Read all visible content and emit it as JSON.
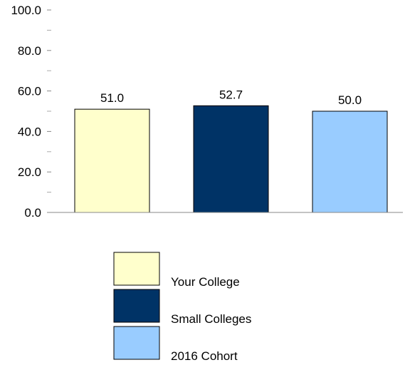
{
  "chart_data": {
    "type": "bar",
    "categories": [
      "Your College",
      "Small Colleges",
      "2016 Cohort"
    ],
    "values": [
      51.0,
      52.7,
      50.0
    ],
    "data_labels": [
      "51.0",
      "52.7",
      "50.0"
    ],
    "colors": [
      "#ffffcc",
      "#003366",
      "#99ccff"
    ],
    "ylim": [
      0,
      100
    ],
    "yticks": [
      0,
      20,
      40,
      60,
      80,
      100
    ],
    "ytick_labels": [
      "0.0",
      "20.0",
      "40.0",
      "60.0",
      "80.0",
      "100.0"
    ],
    "minor_ticks": [
      10,
      30,
      50,
      70,
      90
    ],
    "grid": false,
    "legend_position": "bottom",
    "legend": [
      "Your College",
      "Small Colleges",
      "2016 Cohort"
    ]
  }
}
